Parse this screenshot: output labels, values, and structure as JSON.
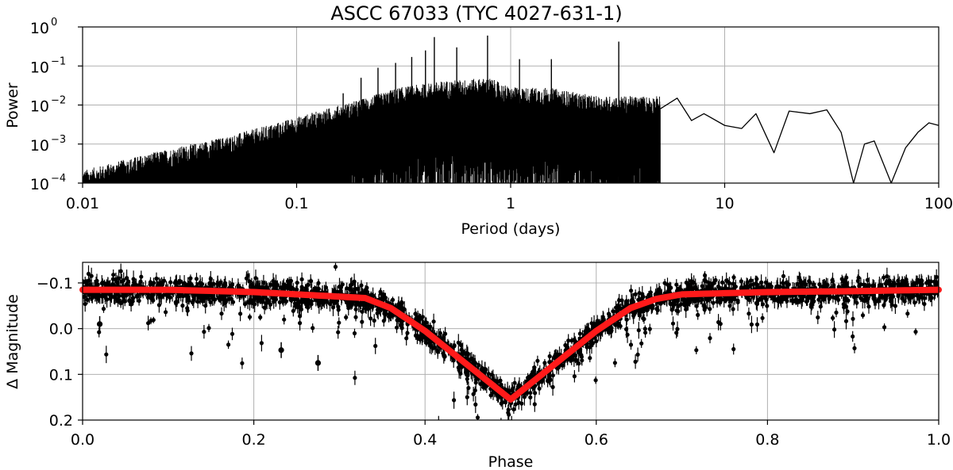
{
  "figure_title": "ASCC 67033  (TYC 4027-631-1)",
  "colors": {
    "signal": "#000000",
    "model": "#ff1a1a",
    "grid": "#b0b0b0"
  },
  "chart_data": [
    {
      "type": "line",
      "name": "periodogram",
      "xscale": "log",
      "yscale": "log",
      "xlabel": "Period (days)",
      "ylabel": "Power",
      "xlim": [
        0.01,
        100
      ],
      "ylim": [
        0.0001,
        1
      ],
      "grid": true,
      "xticks": [
        {
          "v": 0.01,
          "label": "0.01"
        },
        {
          "v": 0.1,
          "label": "0.1"
        },
        {
          "v": 1,
          "label": "1"
        },
        {
          "v": 10,
          "label": "10"
        },
        {
          "v": 100,
          "label": "100"
        }
      ],
      "yticks": [
        {
          "v": 0.0001,
          "base": "10",
          "exp": "−4"
        },
        {
          "v": 0.001,
          "base": "10",
          "exp": "−3"
        },
        {
          "v": 0.01,
          "base": "10",
          "exp": "−2"
        },
        {
          "v": 0.1,
          "base": "10",
          "exp": "−1"
        },
        {
          "v": 1,
          "base": "10",
          "exp": "0"
        }
      ],
      "envelope": {
        "period": [
          0.01,
          0.02,
          0.05,
          0.1,
          0.2,
          0.3,
          0.5,
          0.8,
          1.0,
          1.5,
          2.5,
          5.0
        ],
        "power": [
          0.00015,
          0.0004,
          0.0012,
          0.0035,
          0.01,
          0.02,
          0.03,
          0.035,
          0.02,
          0.02,
          0.012,
          0.012
        ]
      },
      "peaks": [
        {
          "period": 0.165,
          "power": 0.02
        },
        {
          "period": 0.2,
          "power": 0.05
        },
        {
          "period": 0.24,
          "power": 0.09
        },
        {
          "period": 0.29,
          "power": 0.12
        },
        {
          "period": 0.345,
          "power": 0.17
        },
        {
          "period": 0.4,
          "power": 0.25
        },
        {
          "period": 0.44,
          "power": 0.55
        },
        {
          "period": 0.56,
          "power": 0.3
        },
        {
          "period": 0.78,
          "power": 0.6
        },
        {
          "period": 1.1,
          "power": 0.15
        },
        {
          "period": 1.55,
          "power": 0.15
        },
        {
          "period": 3.2,
          "power": 0.42
        }
      ],
      "long_period": {
        "period": [
          5.0,
          6.0,
          7.0,
          8.0,
          10.0,
          12.0,
          14.0,
          17.0,
          20.0,
          25.0,
          30.0,
          35.0,
          40.0,
          45.0,
          50.0,
          60.0,
          70.0,
          80.0,
          90.0,
          100.0
        ],
        "power": [
          0.008,
          0.015,
          0.004,
          0.006,
          0.003,
          0.0025,
          0.006,
          0.0006,
          0.007,
          0.006,
          0.0075,
          0.002,
          0.0001,
          0.001,
          0.0012,
          0.0001,
          0.0008,
          0.002,
          0.0035,
          0.003
        ]
      }
    },
    {
      "type": "scatter",
      "name": "phase-folded light curve",
      "xlabel": "Phase",
      "ylabel": "Δ Magnitude",
      "xlim": [
        0.0,
        1.0
      ],
      "ylim": [
        0.2,
        -0.145
      ],
      "inverted_y": true,
      "grid": true,
      "xticks": [
        {
          "v": 0.0,
          "label": "0.0"
        },
        {
          "v": 0.2,
          "label": "0.2"
        },
        {
          "v": 0.4,
          "label": "0.4"
        },
        {
          "v": 0.6,
          "label": "0.6"
        },
        {
          "v": 0.8,
          "label": "0.8"
        },
        {
          "v": 1.0,
          "label": "1.0"
        }
      ],
      "yticks": [
        {
          "v": -0.1,
          "label": "−0.1"
        },
        {
          "v": 0.0,
          "label": "0.0"
        },
        {
          "v": 0.1,
          "label": "0.1"
        },
        {
          "v": 0.2,
          "label": "0.2"
        }
      ],
      "model": {
        "phase": [
          0.0,
          0.1,
          0.2,
          0.3,
          0.33,
          0.36,
          0.4,
          0.44,
          0.47,
          0.5,
          0.53,
          0.56,
          0.6,
          0.64,
          0.67,
          0.7,
          0.8,
          0.9,
          1.0
        ],
        "dmag": [
          -0.085,
          -0.085,
          -0.08,
          -0.07,
          -0.067,
          -0.045,
          0.005,
          0.065,
          0.11,
          0.155,
          0.11,
          0.065,
          0.005,
          -0.045,
          -0.065,
          -0.075,
          -0.08,
          -0.082,
          -0.085
        ]
      },
      "scatter_sigma": 0.03,
      "outliers": [
        {
          "phase": 0.232,
          "dmag": 0.047
        },
        {
          "phase": 0.275,
          "dmag": 0.075
        },
        {
          "phase": 0.47,
          "dmag": 0.09
        },
        {
          "phase": 0.02,
          "dmag": -0.01
        }
      ]
    }
  ]
}
